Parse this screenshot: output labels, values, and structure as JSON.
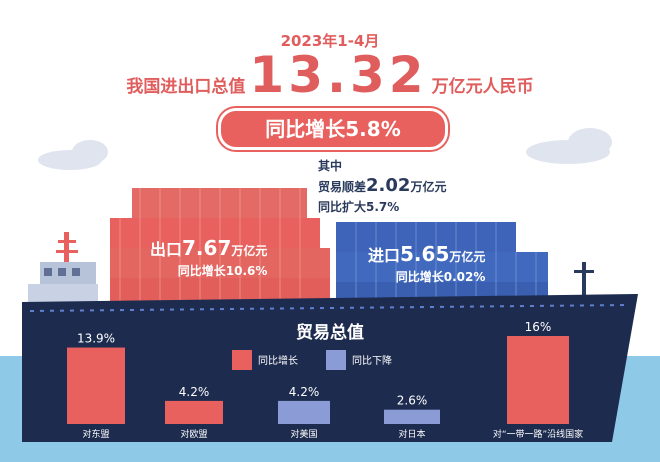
{
  "header": {
    "period": "2023年1-4月",
    "total_prefix": "我国进出口总值",
    "total_value": "13.32",
    "total_unit": "万亿元人民币",
    "growth": "同比增长5.8%"
  },
  "breakdown": {
    "of_which": "其中",
    "surplus_prefix": "贸易顺差",
    "surplus_value": "2.02",
    "surplus_unit": "万亿元",
    "surplus_growth": "同比扩大5.7%",
    "export_prefix": "出口",
    "export_value": "7.67",
    "export_unit": "万亿元",
    "export_growth": "同比增长10.6%",
    "import_prefix": "进口",
    "import_value": "5.65",
    "import_unit": "万亿元",
    "import_growth": "同比增长0.02%"
  },
  "colors": {
    "increase": "#e8615f",
    "decrease": "#8b9bd6",
    "hull": "#1d2b4f",
    "export_container": "#e8615f",
    "import_container": "#3d64b8",
    "sea": "#8ec9e8"
  },
  "chart_data": {
    "type": "bar",
    "title": "贸易总值",
    "categories": [
      "对东盟",
      "对欧盟",
      "对美国",
      "对日本",
      "对“一带一路”沿线国家"
    ],
    "values": [
      13.9,
      4.2,
      -4.2,
      -2.6,
      16
    ],
    "value_labels": [
      "13.9%",
      "4.2%",
      "4.2%",
      "2.6%",
      "16%"
    ],
    "legend": [
      {
        "name": "同比增长",
        "color": "#e8615f"
      },
      {
        "name": "同比下降",
        "color": "#8b9bd6"
      }
    ],
    "legend_position": "top-center",
    "ylim": [
      0,
      16
    ],
    "grid": false
  }
}
